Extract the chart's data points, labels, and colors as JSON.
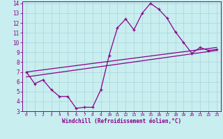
{
  "xlabel": "Windchill (Refroidissement éolien,°C)",
  "bg_color": "#c8eef0",
  "grid_color": "#b0d8dc",
  "line_color": "#880088",
  "xlim": [
    -0.5,
    23.5
  ],
  "ylim": [
    3,
    14.2
  ],
  "xticks": [
    0,
    1,
    2,
    3,
    4,
    5,
    6,
    7,
    8,
    9,
    10,
    11,
    12,
    13,
    14,
    15,
    16,
    17,
    18,
    19,
    20,
    21,
    22,
    23
  ],
  "yticks": [
    3,
    4,
    5,
    6,
    7,
    8,
    9,
    10,
    11,
    12,
    13,
    14
  ],
  "line1_x": [
    0,
    1,
    2,
    3,
    4,
    5,
    6,
    7,
    8,
    9,
    10,
    11,
    12,
    13,
    14,
    15,
    16,
    17,
    18,
    19,
    20,
    21,
    22,
    23
  ],
  "line1_y": [
    7.0,
    5.8,
    6.2,
    5.2,
    4.5,
    4.5,
    3.3,
    3.4,
    3.4,
    5.2,
    8.7,
    11.5,
    12.4,
    11.3,
    13.0,
    14.0,
    13.4,
    12.5,
    11.1,
    10.0,
    8.9,
    9.5,
    9.2,
    9.3
  ],
  "line2_x": [
    0,
    23
  ],
  "line2_y": [
    6.5,
    9.2
  ],
  "line3_x": [
    0,
    23
  ],
  "line3_y": [
    7.0,
    9.5
  ]
}
